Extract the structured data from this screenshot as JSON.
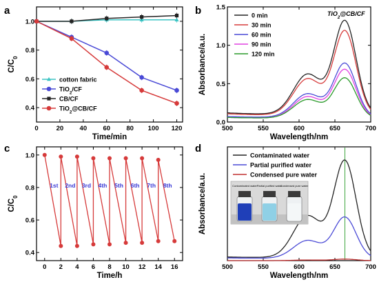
{
  "colors": {
    "cyan": "#3bc4c4",
    "blue": "#4a4ad6",
    "black": "#222222",
    "red": "#d63a3a",
    "magenta": "#e040e0",
    "green": "#2a9a2a",
    "darkred": "#c03030"
  },
  "chart_data": [
    {
      "panel": "a",
      "type": "line",
      "xlabel": "Time/min",
      "ylabel": "C/C0",
      "xlim": [
        0,
        125
      ],
      "ylim": [
        0.3,
        1.1
      ],
      "xticks": [
        0,
        20,
        40,
        60,
        80,
        100,
        120
      ],
      "yticks": [
        0.4,
        0.6,
        0.8,
        1.0
      ],
      "legend_position": "lower-left",
      "series": [
        {
          "name": "cotton fabric",
          "color": "#3bc4c4",
          "marker": "triangle",
          "x": [
            0,
            30,
            60,
            90,
            120
          ],
          "y": [
            1.0,
            1.0,
            1.01,
            1.01,
            1.01
          ]
        },
        {
          "name": "TiO2/CF",
          "color": "#4a4ad6",
          "marker": "circle",
          "x": [
            0,
            30,
            60,
            90,
            120
          ],
          "y": [
            1.0,
            0.89,
            0.78,
            0.61,
            0.52
          ]
        },
        {
          "name": "CB/CF",
          "color": "#222222",
          "marker": "square",
          "x": [
            0,
            30,
            60,
            90,
            120
          ],
          "y": [
            1.0,
            1.0,
            1.02,
            1.03,
            1.04
          ]
        },
        {
          "name": "TiO2@CB/CF",
          "color": "#d63a3a",
          "marker": "circle",
          "x": [
            0,
            30,
            60,
            90,
            120
          ],
          "y": [
            1.0,
            0.88,
            0.68,
            0.52,
            0.43
          ]
        }
      ]
    },
    {
      "panel": "b",
      "type": "line",
      "annotation": "TiO2@CB/CF",
      "xlabel": "Wavelength/nm",
      "ylabel": "Absorbance/a.u.",
      "xlim": [
        500,
        700
      ],
      "ylim": [
        0,
        1.5
      ],
      "xticks": [
        500,
        550,
        600,
        650,
        700
      ],
      "yticks": [
        0.0,
        0.5,
        1.0,
        1.5
      ],
      "legend_position": "top-left",
      "series": [
        {
          "name": "0 min",
          "color": "#222222",
          "peak": 1.31,
          "shoulder": 0.73,
          "base": 0.1
        },
        {
          "name": "30 min",
          "color": "#d63a3a",
          "peak": 1.18,
          "shoulder": 0.66,
          "base": 0.09
        },
        {
          "name": "60 min",
          "color": "#4a4ad6",
          "peak": 0.76,
          "shoulder": 0.43,
          "base": 0.06
        },
        {
          "name": "90 min",
          "color": "#e040e0",
          "peak": 0.68,
          "shoulder": 0.39,
          "base": 0.05
        },
        {
          "name": "120 min",
          "color": "#2a9a2a",
          "peak": 0.57,
          "shoulder": 0.34,
          "base": 0.05
        }
      ]
    },
    {
      "panel": "c",
      "type": "line",
      "xlabel": "Time/h",
      "ylabel": "C/C0",
      "xlim": [
        -1,
        17
      ],
      "ylim": [
        0.35,
        1.05
      ],
      "xticks": [
        0,
        2,
        4,
        6,
        8,
        10,
        12,
        14,
        16
      ],
      "yticks": [
        0.4,
        0.6,
        0.8,
        1.0
      ],
      "cycle_labels": [
        "1st",
        "2nd",
        "3rd",
        "4th",
        "5th",
        "6th",
        "7th",
        "8th"
      ],
      "series": [
        {
          "color": "#d63a3a",
          "x": [
            0,
            2,
            2,
            4,
            4,
            6,
            6,
            8,
            8,
            10,
            10,
            12,
            12,
            14,
            14,
            16
          ],
          "y": [
            1.0,
            0.44,
            0.99,
            0.44,
            0.99,
            0.45,
            0.98,
            0.45,
            0.98,
            0.46,
            0.98,
            0.46,
            0.98,
            0.47,
            0.97,
            0.47
          ]
        }
      ]
    },
    {
      "panel": "d",
      "type": "line",
      "xlabel": "Wavelength/nm",
      "ylabel": "Absorbance/a.u.",
      "xlim": [
        500,
        700
      ],
      "ylim": [
        0,
        1.5
      ],
      "xticks": [
        500,
        550,
        600,
        650,
        700
      ],
      "legend_position": "top-left",
      "vertical_marker": 664,
      "inset_labels": [
        "Contaminated water",
        "Partial purified water",
        "Condensed pure water"
      ],
      "series": [
        {
          "name": "Contaminated water",
          "color": "#222222",
          "peak": 1.31,
          "shoulder": 0.73,
          "base": 0.04
        },
        {
          "name": "Partial purified water",
          "color": "#4a4ad6",
          "peak": 0.57,
          "shoulder": 0.32,
          "base": 0.03
        },
        {
          "name": "Condensed pure water",
          "color": "#c03030",
          "peak": 0.02,
          "shoulder": 0.01,
          "base": 0.0
        }
      ]
    }
  ],
  "panels": {
    "a": {
      "letter": "a",
      "tio2_sub": "2",
      "c0_sub": "0"
    },
    "b": {
      "letter": "b"
    },
    "c": {
      "letter": "c"
    },
    "d": {
      "letter": "d"
    }
  }
}
